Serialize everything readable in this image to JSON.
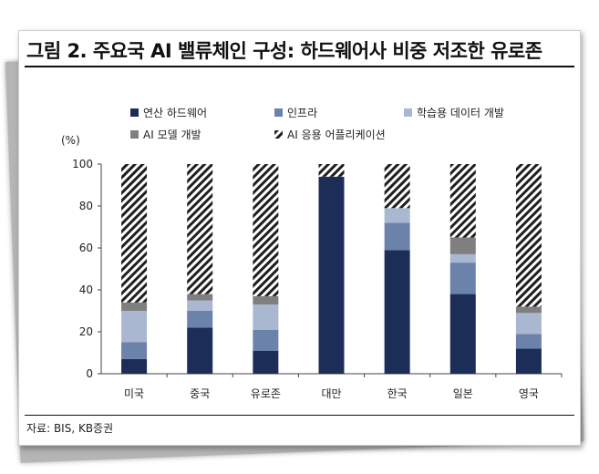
{
  "figure": {
    "title": "그림 2. 주요국 AI 밸류체인 구성: 하드웨어사 비중 저조한 유로존",
    "source": "자료: BIS, KB증권"
  },
  "chart_data": {
    "type": "bar",
    "stacked": true,
    "categories": [
      "미국",
      "중국",
      "유로존",
      "대만",
      "한국",
      "일본",
      "영국"
    ],
    "ylabel": "(%)",
    "ylim": [
      0,
      100
    ],
    "yticks": [
      0,
      20,
      40,
      60,
      80,
      100
    ],
    "grid": false,
    "legend_position": "top",
    "series": [
      {
        "name": "연산 하드웨어",
        "color": "#1c2d57",
        "pattern": "solid",
        "values": [
          7,
          22,
          11,
          94,
          59,
          38,
          12
        ]
      },
      {
        "name": "인프라",
        "color": "#6b82ab",
        "pattern": "solid",
        "values": [
          8,
          8,
          10,
          0,
          13,
          15,
          7
        ]
      },
      {
        "name": "학습용 데이터 개발",
        "color": "#a9b7d1",
        "pattern": "solid",
        "values": [
          15,
          5,
          12,
          0,
          7,
          4,
          10
        ]
      },
      {
        "name": "AI 모델 개발",
        "color": "#7f7f7f",
        "pattern": "solid",
        "values": [
          4,
          3,
          4,
          0,
          0,
          8,
          3
        ]
      },
      {
        "name": "AI 응용 어플리케이션",
        "color": "#1f1f1f",
        "pattern": "hatch",
        "values": [
          66,
          62,
          63,
          6,
          21,
          35,
          68
        ]
      }
    ]
  }
}
